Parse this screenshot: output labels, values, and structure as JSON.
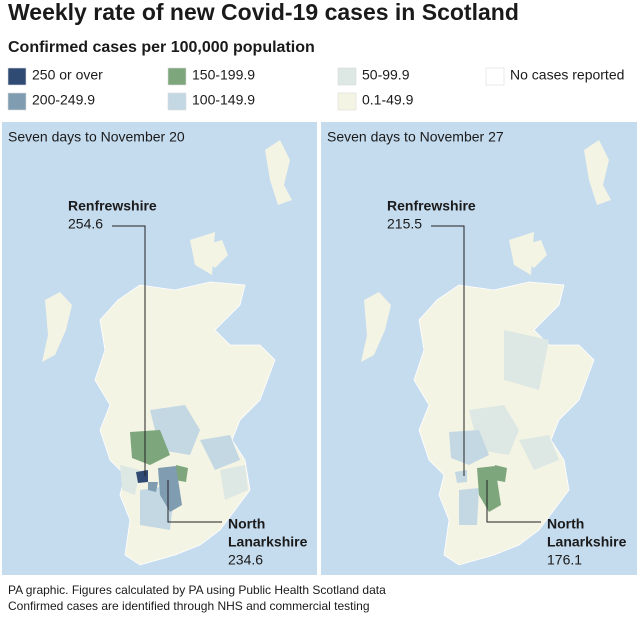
{
  "header": {
    "title": "Weekly rate of new Covid-19 cases in Scotland",
    "subtitle": "Confirmed cases per 100,000 population"
  },
  "legend": [
    {
      "label": "250 or over",
      "color": "#2f4b74"
    },
    {
      "label": "200-249.9",
      "color": "#7f9cb0"
    },
    {
      "label": "150-199.9",
      "color": "#7ea67c"
    },
    {
      "label": "100-149.9",
      "color": "#c4d8e4"
    },
    {
      "label": "50-99.9",
      "color": "#dde8e4"
    },
    {
      "label": "0.1-49.9",
      "color": "#f4f4e4"
    },
    {
      "label": "No cases reported",
      "color": "#ffffff"
    }
  ],
  "panels": [
    {
      "title": "Seven days to November 20",
      "callouts": [
        {
          "name": [
            "Renfrewshire"
          ],
          "value": 254.6
        },
        {
          "name": [
            "North",
            "Lanarkshire"
          ],
          "value": 234.6
        }
      ]
    },
    {
      "title": "Seven days to November 27",
      "callouts": [
        {
          "name": [
            "Renfrewshire"
          ],
          "value": 215.5
        },
        {
          "name": [
            "North",
            "Lanarkshire"
          ],
          "value": 176.1
        }
      ]
    }
  ],
  "footer": [
    "PA graphic. Figures calculated by PA using Public Health Scotland data",
    "Confirmed cases are identified through NHS and commercial testing"
  ]
}
